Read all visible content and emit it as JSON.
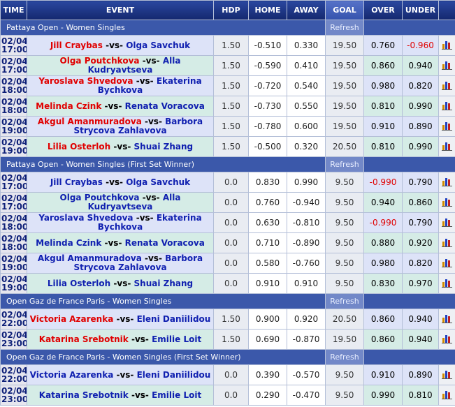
{
  "header": [
    "TIME",
    "EVENT",
    "HDP",
    "HOME",
    "AWAY",
    "GOAL",
    "OVER",
    "UNDER"
  ],
  "vs": "-vs-",
  "refresh": "Refresh",
  "sections": [
    {
      "title": "Pattaya Open - Women Singles",
      "home_red": true,
      "rows": [
        {
          "date": "02/04",
          "time": "17:00",
          "home": "Jill Craybas",
          "away": "Olga Savchuk",
          "hdp": "1.50",
          "home_odds": "-0.510",
          "away_odds": "0.330",
          "goal": "19.50",
          "over": "0.760",
          "under": "-0.960"
        },
        {
          "date": "02/04",
          "time": "17:00",
          "home": "Olga Poutchkova",
          "away": "Alla Kudryavtseva",
          "hdp": "1.50",
          "home_odds": "-0.590",
          "away_odds": "0.410",
          "goal": "19.50",
          "over": "0.860",
          "under": "0.940"
        },
        {
          "date": "02/04",
          "time": "18:00",
          "home": "Yaroslava Shvedova",
          "away": "Ekaterina Bychkova",
          "hdp": "1.50",
          "home_odds": "-0.720",
          "away_odds": "0.540",
          "goal": "19.50",
          "over": "0.980",
          "under": "0.820"
        },
        {
          "date": "02/04",
          "time": "18:00",
          "home": "Melinda Czink",
          "away": "Renata Voracova",
          "hdp": "1.50",
          "home_odds": "-0.730",
          "away_odds": "0.550",
          "goal": "19.50",
          "over": "0.810",
          "under": "0.990"
        },
        {
          "date": "02/04",
          "time": "19:00",
          "home": "Akgul Amanmuradova",
          "away": "Barbora Strycova Zahlavova",
          "hdp": "1.50",
          "home_odds": "-0.780",
          "away_odds": "0.600",
          "goal": "19.50",
          "over": "0.910",
          "under": "0.890"
        },
        {
          "date": "02/04",
          "time": "19:00",
          "home": "Lilia Osterloh",
          "away": "Shuai Zhang",
          "hdp": "1.50",
          "home_odds": "-0.500",
          "away_odds": "0.320",
          "goal": "20.50",
          "over": "0.810",
          "under": "0.990"
        }
      ]
    },
    {
      "title": "Pattaya Open - Women Singles (First Set Winner)",
      "home_red": false,
      "rows": [
        {
          "date": "02/04",
          "time": "17:00",
          "home": "Jill Craybas",
          "away": "Olga Savchuk",
          "hdp": "0.0",
          "home_odds": "0.830",
          "away_odds": "0.990",
          "goal": "9.50",
          "over": "-0.990",
          "under": "0.790"
        },
        {
          "date": "02/04",
          "time": "17:00",
          "home": "Olga Poutchkova",
          "away": "Alla Kudryavtseva",
          "hdp": "0.0",
          "home_odds": "0.760",
          "away_odds": "-0.940",
          "goal": "9.50",
          "over": "0.940",
          "under": "0.860"
        },
        {
          "date": "02/04",
          "time": "18:00",
          "home": "Yaroslava Shvedova",
          "away": "Ekaterina Bychkova",
          "hdp": "0.0",
          "home_odds": "0.630",
          "away_odds": "-0.810",
          "goal": "9.50",
          "over": "-0.990",
          "under": "0.790"
        },
        {
          "date": "02/04",
          "time": "18:00",
          "home": "Melinda Czink",
          "away": "Renata Voracova",
          "hdp": "0.0",
          "home_odds": "0.710",
          "away_odds": "-0.890",
          "goal": "9.50",
          "over": "0.880",
          "under": "0.920"
        },
        {
          "date": "02/04",
          "time": "19:00",
          "home": "Akgul Amanmuradova",
          "away": "Barbora Strycova Zahlavova",
          "hdp": "0.0",
          "home_odds": "0.580",
          "away_odds": "-0.760",
          "goal": "9.50",
          "over": "0.980",
          "under": "0.820"
        },
        {
          "date": "02/04",
          "time": "19:00",
          "home": "Lilia Osterloh",
          "away": "Shuai Zhang",
          "hdp": "0.0",
          "home_odds": "0.910",
          "away_odds": "0.910",
          "goal": "9.50",
          "over": "0.830",
          "under": "0.970"
        }
      ]
    },
    {
      "title": "Open Gaz de France Paris - Women Singles",
      "home_red": true,
      "rows": [
        {
          "date": "02/04",
          "time": "22:00",
          "home": "Victoria Azarenka",
          "away": "Eleni Daniilidou",
          "hdp": "1.50",
          "home_odds": "0.900",
          "away_odds": "0.920",
          "goal": "20.50",
          "over": "0.860",
          "under": "0.940"
        },
        {
          "date": "02/04",
          "time": "23:00",
          "home": "Katarina Srebotnik",
          "away": "Emilie Loit",
          "hdp": "1.50",
          "home_odds": "0.690",
          "away_odds": "-0.870",
          "goal": "19.50",
          "over": "0.860",
          "under": "0.940"
        }
      ]
    },
    {
      "title": "Open Gaz de France Paris - Women Singles (First Set Winner)",
      "home_red": false,
      "rows": [
        {
          "date": "02/04",
          "time": "22:00",
          "home": "Victoria Azarenka",
          "away": "Eleni Daniilidou",
          "hdp": "0.0",
          "home_odds": "0.390",
          "away_odds": "-0.570",
          "goal": "9.50",
          "over": "0.910",
          "under": "0.890"
        },
        {
          "date": "02/04",
          "time": "23:00",
          "home": "Katarina Srebotnik",
          "away": "Emilie Loit",
          "hdp": "0.0",
          "home_odds": "0.290",
          "away_odds": "-0.470",
          "goal": "9.50",
          "over": "0.990",
          "under": "0.810"
        }
      ]
    }
  ]
}
